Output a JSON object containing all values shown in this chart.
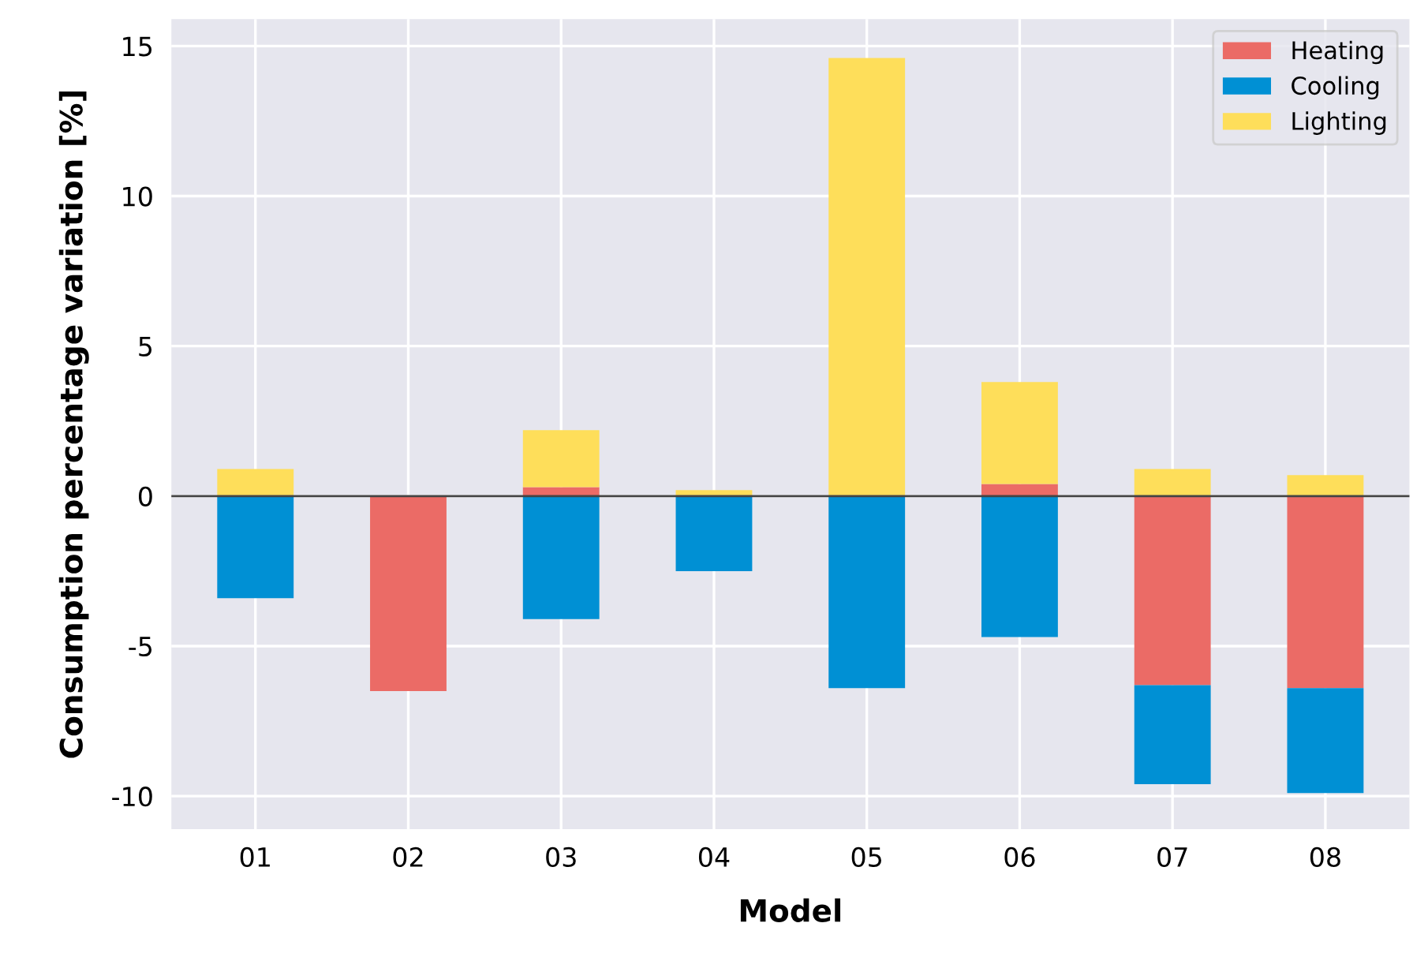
{
  "chart_data": {
    "type": "bar",
    "stacked": true,
    "xlabel": "Model",
    "ylabel": "Consumption percentage variation [%]",
    "categories": [
      "01",
      "02",
      "03",
      "04",
      "05",
      "06",
      "07",
      "08"
    ],
    "series": [
      {
        "name": "Heating",
        "color": "#eb6b66",
        "values": [
          0,
          -6.5,
          0.3,
          0,
          0,
          0.4,
          -6.3,
          -6.4
        ]
      },
      {
        "name": "Cooling",
        "color": "#0090d4",
        "values": [
          -3.4,
          0,
          -4.1,
          -2.5,
          -6.4,
          -4.7,
          -3.3,
          -3.5
        ]
      },
      {
        "name": "Lighting",
        "color": "#fede5a",
        "values": [
          0.9,
          0,
          1.9,
          0.2,
          14.6,
          3.4,
          0.9,
          0.7
        ]
      }
    ],
    "ylim": [
      -11.1,
      15.9
    ],
    "yticks": [
      -10,
      -5,
      0,
      5,
      10,
      15
    ],
    "ref_lines": [
      {
        "axis": "y",
        "value": 0,
        "color": "#444444"
      }
    ],
    "grid": true,
    "legend": "top right"
  }
}
